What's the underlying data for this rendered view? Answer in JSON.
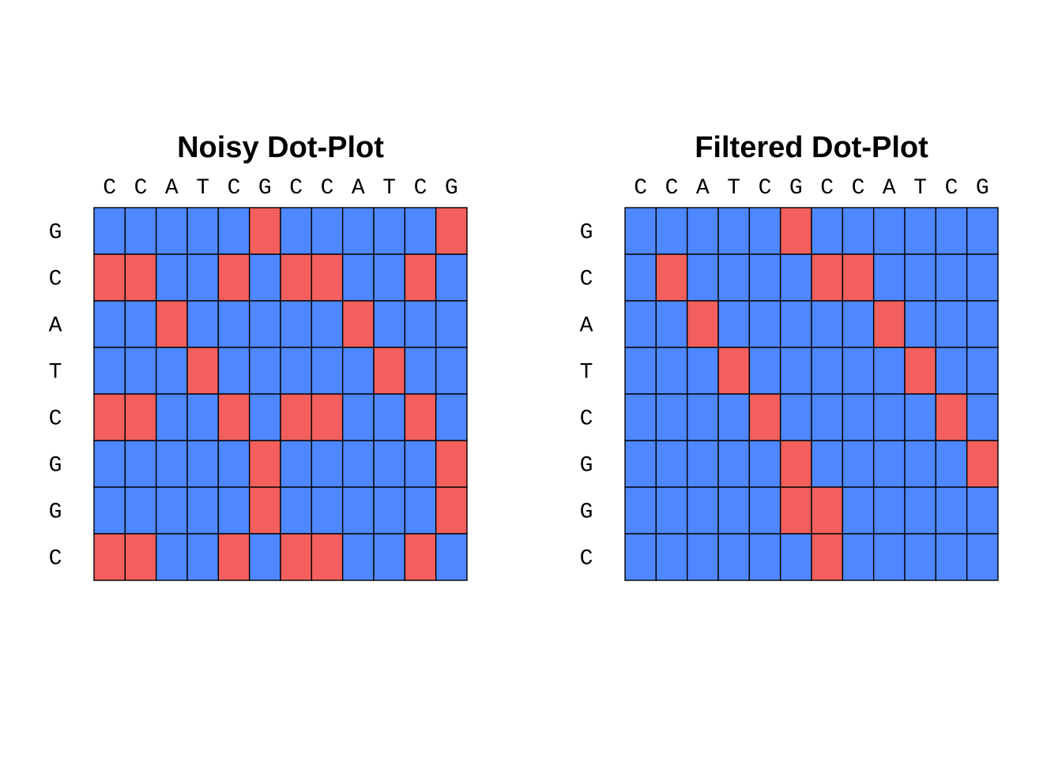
{
  "colors": {
    "match": "#F25F5C",
    "mismatch": "#4E87FF",
    "grid": "#000000"
  },
  "chart_data": [
    {
      "type": "heatmap",
      "title": "Noisy Dot-Plot",
      "x": [
        "C",
        "C",
        "A",
        "T",
        "C",
        "G",
        "C",
        "C",
        "A",
        "T",
        "C",
        "G"
      ],
      "y": [
        "G",
        "C",
        "A",
        "T",
        "C",
        "G",
        "G",
        "C"
      ],
      "values": [
        [
          0,
          0,
          0,
          0,
          0,
          1,
          0,
          0,
          0,
          0,
          0,
          1
        ],
        [
          1,
          1,
          0,
          0,
          1,
          0,
          1,
          1,
          0,
          0,
          1,
          0
        ],
        [
          0,
          0,
          1,
          0,
          0,
          0,
          0,
          0,
          1,
          0,
          0,
          0
        ],
        [
          0,
          0,
          0,
          1,
          0,
          0,
          0,
          0,
          0,
          1,
          0,
          0
        ],
        [
          1,
          1,
          0,
          0,
          1,
          0,
          1,
          1,
          0,
          0,
          1,
          0
        ],
        [
          0,
          0,
          0,
          0,
          0,
          1,
          0,
          0,
          0,
          0,
          0,
          1
        ],
        [
          0,
          0,
          0,
          0,
          0,
          1,
          0,
          0,
          0,
          0,
          0,
          1
        ],
        [
          1,
          1,
          0,
          0,
          1,
          0,
          1,
          1,
          0,
          0,
          1,
          0
        ]
      ]
    },
    {
      "type": "heatmap",
      "title": "Filtered Dot-Plot",
      "x": [
        "C",
        "C",
        "A",
        "T",
        "C",
        "G",
        "C",
        "C",
        "A",
        "T",
        "C",
        "G"
      ],
      "y": [
        "G",
        "C",
        "A",
        "T",
        "C",
        "G",
        "G",
        "C"
      ],
      "values": [
        [
          0,
          0,
          0,
          0,
          0,
          1,
          0,
          0,
          0,
          0,
          0,
          0
        ],
        [
          0,
          1,
          0,
          0,
          0,
          0,
          1,
          1,
          0,
          0,
          0,
          0
        ],
        [
          0,
          0,
          1,
          0,
          0,
          0,
          0,
          0,
          1,
          0,
          0,
          0
        ],
        [
          0,
          0,
          0,
          1,
          0,
          0,
          0,
          0,
          0,
          1,
          0,
          0
        ],
        [
          0,
          0,
          0,
          0,
          1,
          0,
          0,
          0,
          0,
          0,
          1,
          0
        ],
        [
          0,
          0,
          0,
          0,
          0,
          1,
          0,
          0,
          0,
          0,
          0,
          1
        ],
        [
          0,
          0,
          0,
          0,
          0,
          1,
          1,
          0,
          0,
          0,
          0,
          0
        ],
        [
          0,
          0,
          0,
          0,
          0,
          0,
          1,
          0,
          0,
          0,
          0,
          0
        ]
      ]
    }
  ]
}
